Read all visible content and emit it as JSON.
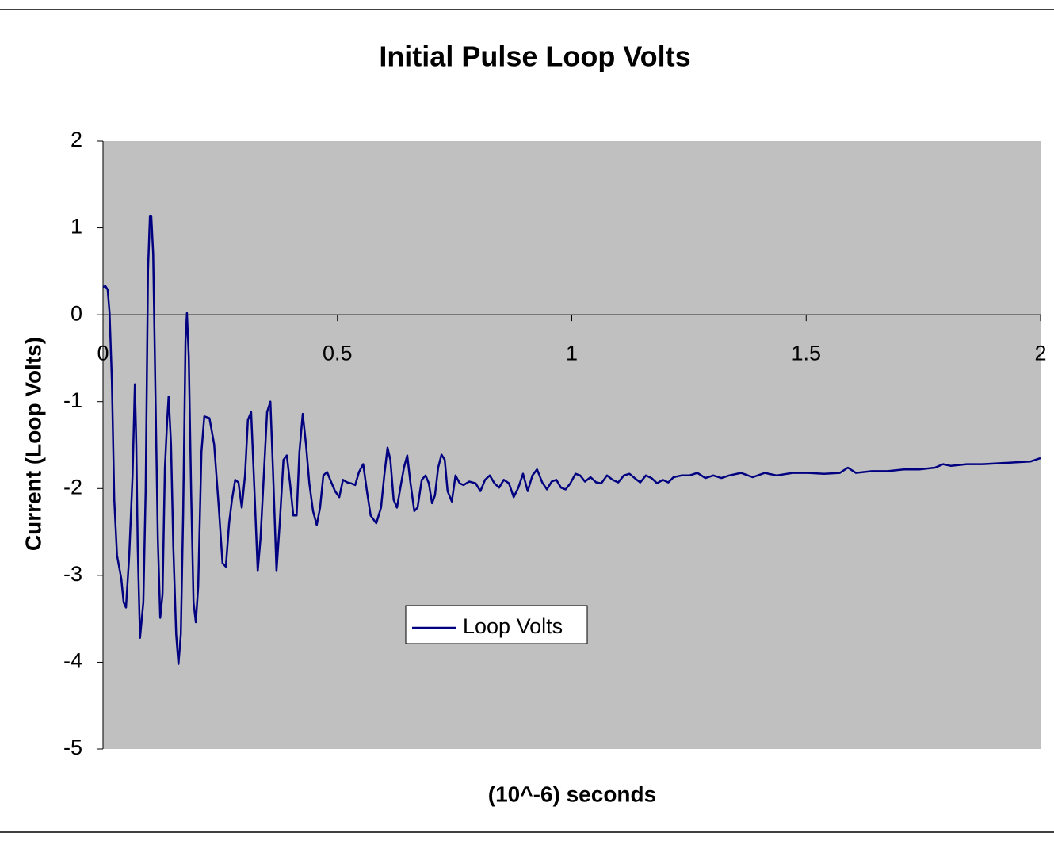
{
  "chart_data": {
    "type": "line",
    "title": "Initial Pulse Loop Volts",
    "x_label": "(10^-6) seconds",
    "y_label": "Current (Loop Volts)",
    "x": [
      0,
      0.005,
      0.01,
      0.014,
      0.019,
      0.024,
      0.03,
      0.039,
      0.044,
      0.049,
      0.056,
      0.063,
      0.068,
      0.071,
      0.074,
      0.079,
      0.086,
      0.091,
      0.096,
      0.1,
      0.103,
      0.107,
      0.112,
      0.117,
      0.122,
      0.127,
      0.132,
      0.137,
      0.14,
      0.145,
      0.15,
      0.156,
      0.161,
      0.166,
      0.171,
      0.176,
      0.179,
      0.183,
      0.188,
      0.193,
      0.198,
      0.203,
      0.21,
      0.216,
      0.227,
      0.237,
      0.247,
      0.255,
      0.262,
      0.269,
      0.275,
      0.282,
      0.289,
      0.296,
      0.303,
      0.309,
      0.316,
      0.323,
      0.33,
      0.336,
      0.343,
      0.35,
      0.357,
      0.363,
      0.37,
      0.377,
      0.385,
      0.392,
      0.399,
      0.406,
      0.413,
      0.419,
      0.426,
      0.433,
      0.44,
      0.448,
      0.456,
      0.463,
      0.47,
      0.478,
      0.487,
      0.495,
      0.504,
      0.512,
      0.521,
      0.529,
      0.538,
      0.546,
      0.555,
      0.563,
      0.571,
      0.583,
      0.593,
      0.6,
      0.607,
      0.613,
      0.62,
      0.627,
      0.636,
      0.642,
      0.649,
      0.656,
      0.664,
      0.671,
      0.68,
      0.688,
      0.695,
      0.702,
      0.708,
      0.715,
      0.722,
      0.729,
      0.735,
      0.744,
      0.752,
      0.761,
      0.769,
      0.781,
      0.795,
      0.805,
      0.815,
      0.825,
      0.835,
      0.845,
      0.855,
      0.866,
      0.876,
      0.886,
      0.896,
      0.906,
      0.916,
      0.926,
      0.937,
      0.947,
      0.957,
      0.967,
      0.977,
      0.987,
      0.997,
      1.008,
      1.018,
      1.028,
      1.04,
      1.052,
      1.063,
      1.075,
      1.087,
      1.099,
      1.111,
      1.123,
      1.134,
      1.146,
      1.158,
      1.17,
      1.182,
      1.194,
      1.206,
      1.217,
      1.234,
      1.251,
      1.268,
      1.285,
      1.302,
      1.319,
      1.336,
      1.361,
      1.386,
      1.412,
      1.437,
      1.471,
      1.505,
      1.538,
      1.572,
      1.589,
      1.606,
      1.64,
      1.674,
      1.708,
      1.741,
      1.775,
      1.792,
      1.809,
      1.843,
      1.877,
      1.91,
      1.944,
      1.978,
      2.0
    ],
    "series": [
      {
        "name": "Loop Volts",
        "color": "#000080",
        "values": [
          0.32,
          0.33,
          0.29,
          0.02,
          -0.76,
          -2.13,
          -2.77,
          -3.04,
          -3.31,
          -3.37,
          -2.77,
          -1.85,
          -0.8,
          -1.49,
          -2.67,
          -3.72,
          -3.31,
          -2.03,
          0.52,
          1.14,
          1.14,
          0.7,
          -0.94,
          -2.58,
          -3.49,
          -3.22,
          -1.76,
          -1.21,
          -0.94,
          -1.49,
          -2.67,
          -3.68,
          -4.02,
          -3.68,
          -2.31,
          -0.3,
          0.02,
          -0.48,
          -2.03,
          -3.31,
          -3.54,
          -3.13,
          -1.58,
          -1.17,
          -1.19,
          -1.49,
          -2.22,
          -2.86,
          -2.9,
          -2.4,
          -2.13,
          -1.9,
          -1.93,
          -2.22,
          -1.85,
          -1.21,
          -1.12,
          -2.03,
          -2.95,
          -2.58,
          -1.85,
          -1.12,
          -1.0,
          -1.85,
          -2.95,
          -2.4,
          -1.67,
          -1.62,
          -1.94,
          -2.31,
          -2.31,
          -1.58,
          -1.14,
          -1.49,
          -1.94,
          -2.26,
          -2.42,
          -2.22,
          -1.85,
          -1.81,
          -1.93,
          -2.03,
          -2.1,
          -1.9,
          -1.93,
          -1.94,
          -1.96,
          -1.81,
          -1.72,
          -2.03,
          -2.31,
          -2.4,
          -2.22,
          -1.85,
          -1.53,
          -1.67,
          -2.13,
          -2.22,
          -1.94,
          -1.76,
          -1.62,
          -1.94,
          -2.26,
          -2.22,
          -1.9,
          -1.85,
          -1.94,
          -2.17,
          -2.08,
          -1.76,
          -1.61,
          -1.67,
          -2.03,
          -2.15,
          -1.85,
          -1.94,
          -1.96,
          -1.92,
          -1.94,
          -2.03,
          -1.9,
          -1.85,
          -1.94,
          -1.99,
          -1.9,
          -1.94,
          -2.1,
          -1.99,
          -1.83,
          -2.03,
          -1.85,
          -1.78,
          -1.93,
          -2.01,
          -1.92,
          -1.9,
          -1.99,
          -2.01,
          -1.94,
          -1.83,
          -1.85,
          -1.92,
          -1.87,
          -1.93,
          -1.94,
          -1.85,
          -1.9,
          -1.93,
          -1.85,
          -1.83,
          -1.88,
          -1.93,
          -1.85,
          -1.88,
          -1.94,
          -1.9,
          -1.93,
          -1.87,
          -1.85,
          -1.85,
          -1.82,
          -1.88,
          -1.85,
          -1.88,
          -1.85,
          -1.82,
          -1.87,
          -1.82,
          -1.85,
          -1.82,
          -1.82,
          -1.83,
          -1.82,
          -1.76,
          -1.82,
          -1.8,
          -1.8,
          -1.78,
          -1.78,
          -1.76,
          -1.72,
          -1.74,
          -1.72,
          -1.72,
          -1.71,
          -1.7,
          -1.69,
          -1.65
        ]
      }
    ],
    "xlim": [
      0,
      2
    ],
    "xticks": [
      0,
      0.5,
      1,
      1.5,
      2
    ],
    "ylim": [
      -5,
      2
    ],
    "yticks": [
      2,
      1,
      0,
      -1,
      -2,
      -3,
      -4,
      -5
    ],
    "plot_background": "#c0c0c0"
  }
}
